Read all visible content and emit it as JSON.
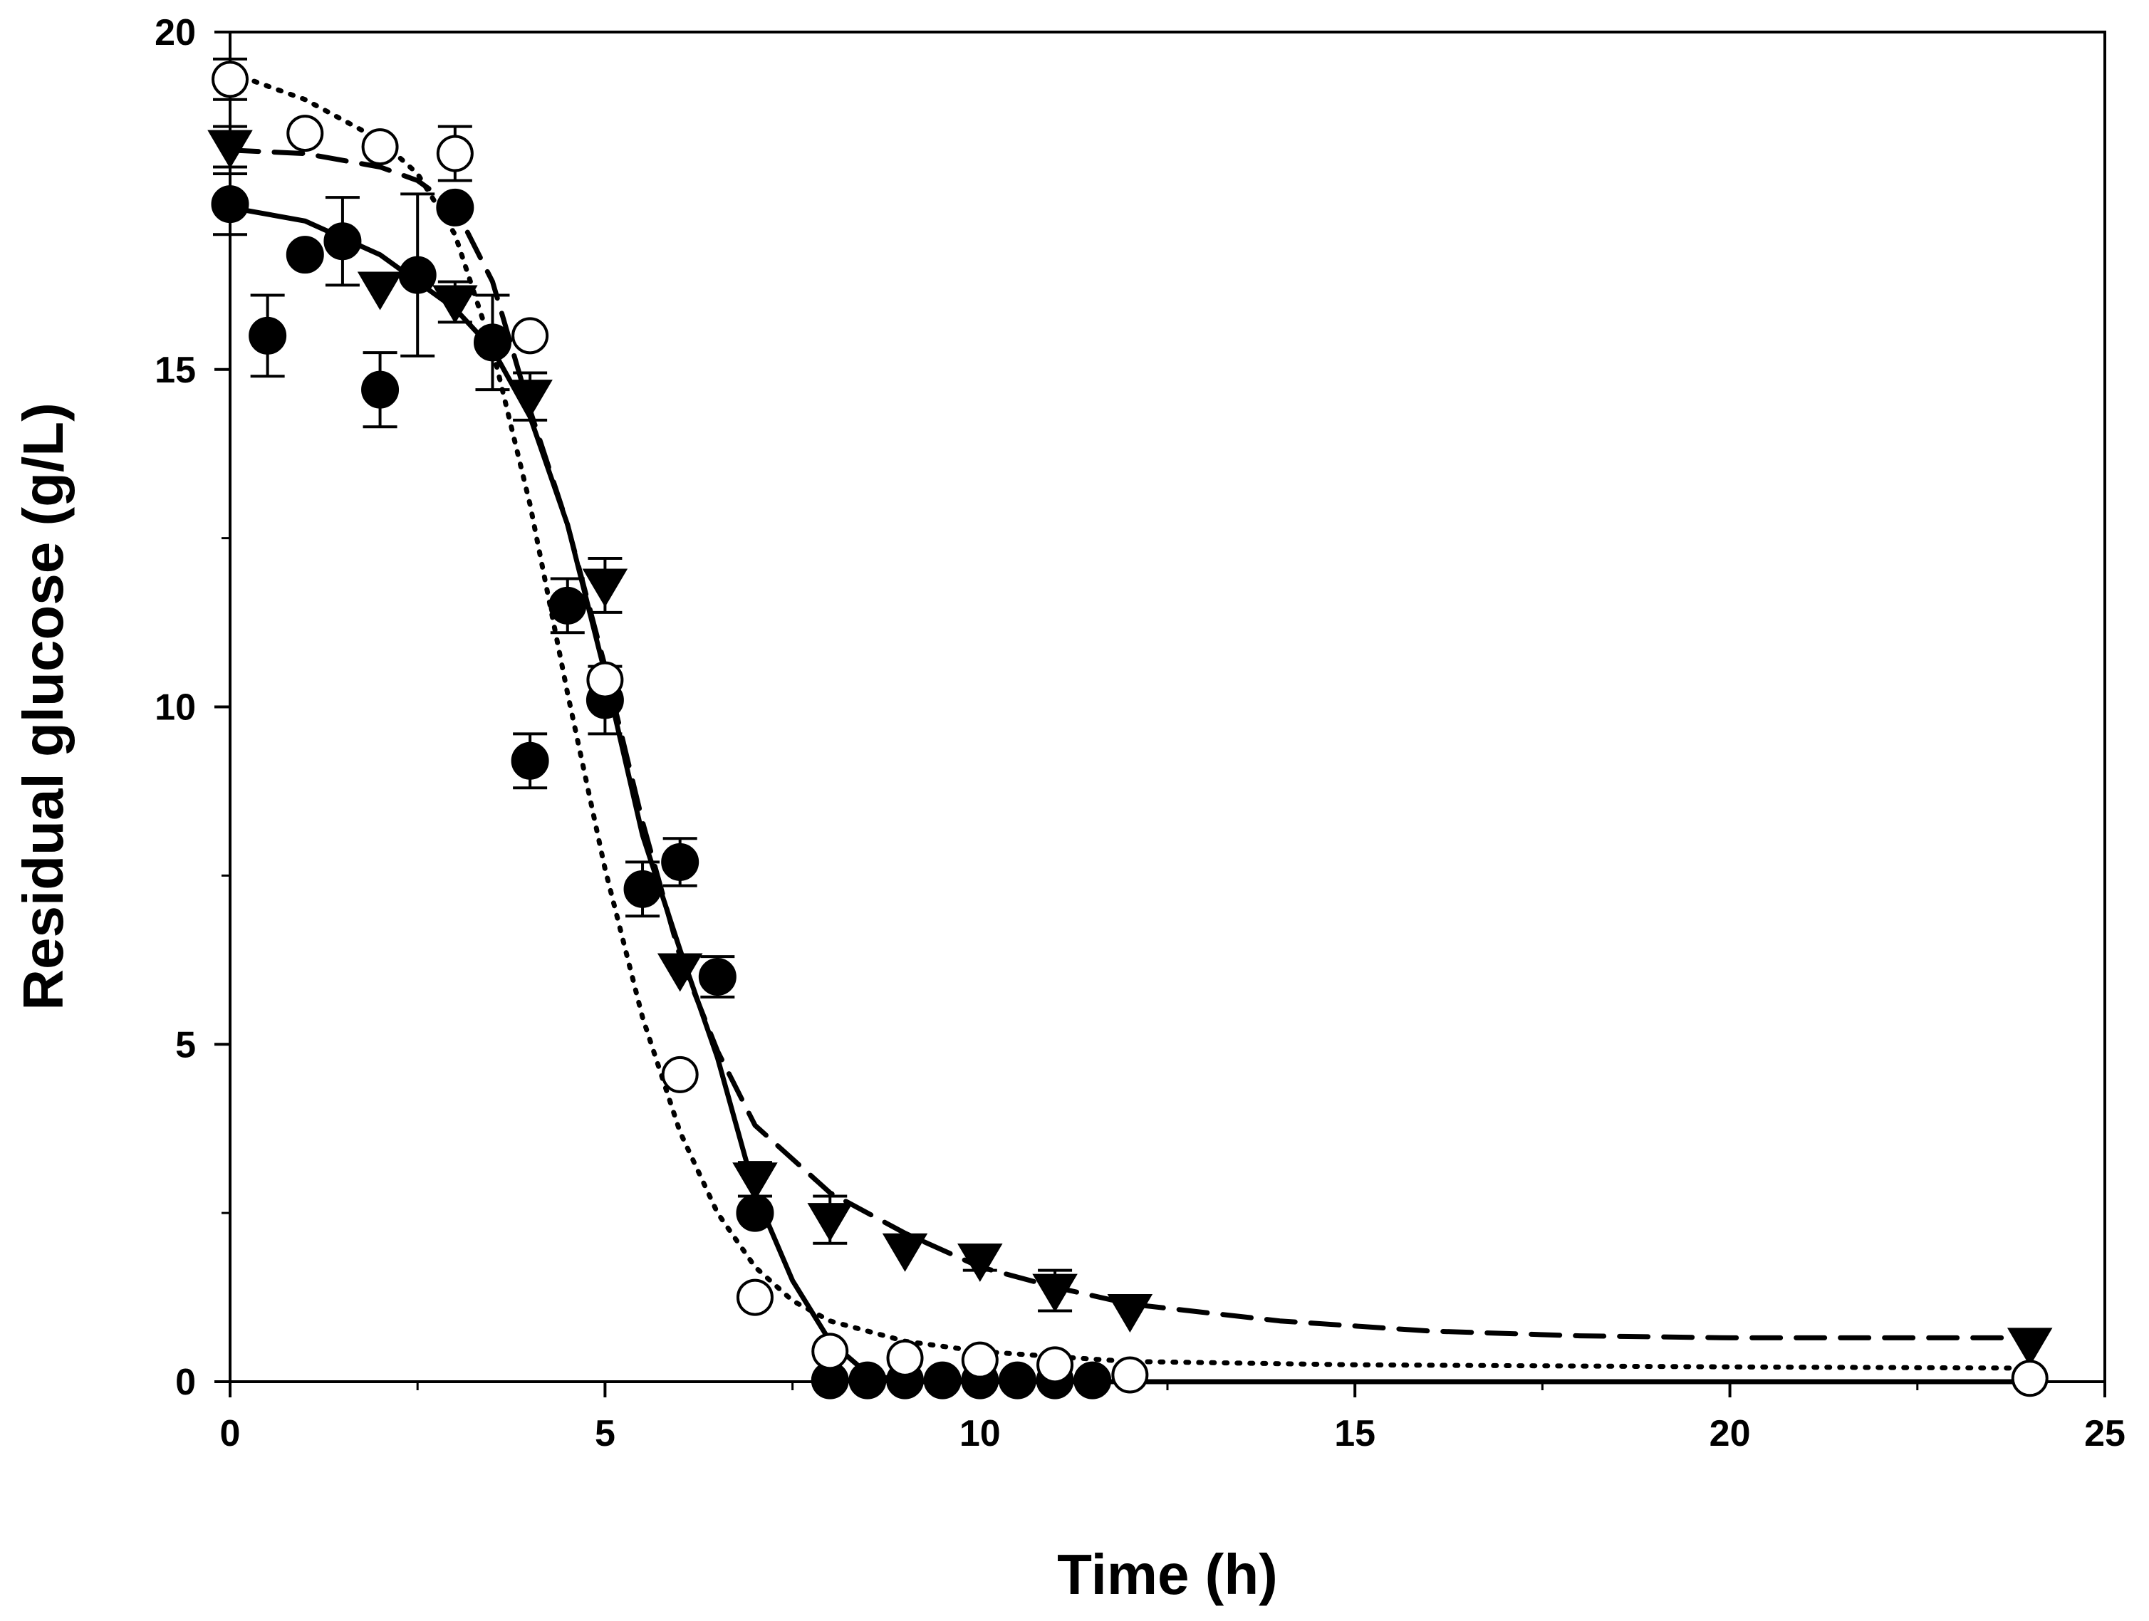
{
  "chart_data": {
    "type": "scatter",
    "title": "",
    "xlabel": "Time (h)",
    "ylabel": "Residual glucose (g/L)",
    "xlim": [
      0,
      25
    ],
    "ylim": [
      0,
      20
    ],
    "xticks": [
      0,
      5,
      10,
      15,
      20,
      25
    ],
    "yticks": [
      0,
      5,
      10,
      15,
      20
    ],
    "xtick_labels": [
      "0",
      "5",
      "10",
      "15",
      "20",
      "25"
    ],
    "ytick_labels": [
      "0",
      "5",
      "10",
      "15",
      "20"
    ],
    "grid": false,
    "legend": "none",
    "series": [
      {
        "name": "filled circles",
        "marker": "circle-filled",
        "line": "solid",
        "points": [
          {
            "x": 0,
            "y": 17.45,
            "err": 0.45
          },
          {
            "x": 0.5,
            "y": 15.5,
            "err": 0.6
          },
          {
            "x": 1,
            "y": 16.7,
            "err": 0.0
          },
          {
            "x": 1.5,
            "y": 16.9,
            "err": 0.65
          },
          {
            "x": 2,
            "y": 14.7,
            "err": 0.55
          },
          {
            "x": 2.5,
            "y": 16.4,
            "err": 1.2
          },
          {
            "x": 3,
            "y": 17.4,
            "err": 0.0
          },
          {
            "x": 3.5,
            "y": 15.4,
            "err": 0.7
          },
          {
            "x": 4,
            "y": 9.2,
            "err": 0.4
          },
          {
            "x": 4.5,
            "y": 11.5,
            "err": 0.4
          },
          {
            "x": 5,
            "y": 10.1,
            "err": 0.5
          },
          {
            "x": 5.5,
            "y": 7.3,
            "err": 0.4
          },
          {
            "x": 6,
            "y": 7.7,
            "err": 0.35
          },
          {
            "x": 6.5,
            "y": 6.0,
            "err": 0.3
          },
          {
            "x": 7,
            "y": 2.5,
            "err": 0.0
          },
          {
            "x": 8,
            "y": 0.02,
            "err": 0.0
          },
          {
            "x": 8.5,
            "y": 0.02,
            "err": 0.0
          },
          {
            "x": 9,
            "y": 0.02,
            "err": 0.0
          },
          {
            "x": 9.5,
            "y": 0.02,
            "err": 0.0
          },
          {
            "x": 10,
            "y": 0.02,
            "err": 0.0
          },
          {
            "x": 10.5,
            "y": 0.02,
            "err": 0.0
          },
          {
            "x": 11,
            "y": 0.02,
            "err": 0.0
          },
          {
            "x": 11.5,
            "y": 0.02,
            "err": 0.0
          }
        ],
        "fit": [
          [
            0,
            17.4
          ],
          [
            1,
            17.2
          ],
          [
            2,
            16.7
          ],
          [
            3,
            15.9
          ],
          [
            3.5,
            15.3
          ],
          [
            4,
            14.3
          ],
          [
            4.5,
            12.7
          ],
          [
            5,
            10.5
          ],
          [
            5.5,
            8.1
          ],
          [
            6,
            6.4
          ],
          [
            6.5,
            4.8
          ],
          [
            7,
            2.8
          ],
          [
            7.5,
            1.5
          ],
          [
            8,
            0.6
          ],
          [
            8.5,
            0.12
          ],
          [
            9,
            0.0
          ],
          [
            12,
            0.0
          ],
          [
            24,
            0.0
          ]
        ]
      },
      {
        "name": "filled triangles",
        "marker": "triangle-down-filled",
        "line": "dashed",
        "points": [
          {
            "x": 0,
            "y": 18.3,
            "err": 0.3
          },
          {
            "x": 2,
            "y": 16.2,
            "err": 0.0
          },
          {
            "x": 3,
            "y": 16.0,
            "err": 0.3
          },
          {
            "x": 4,
            "y": 14.6,
            "err": 0.35
          },
          {
            "x": 5,
            "y": 11.8,
            "err": 0.4
          },
          {
            "x": 6,
            "y": 6.1,
            "err": 0.0
          },
          {
            "x": 7,
            "y": 3.0,
            "err": 0.25
          },
          {
            "x": 8,
            "y": 2.4,
            "err": 0.35
          },
          {
            "x": 9,
            "y": 1.95,
            "err": 0.0
          },
          {
            "x": 10,
            "y": 1.8,
            "err": 0.15
          },
          {
            "x": 11,
            "y": 1.35,
            "err": 0.3
          },
          {
            "x": 12,
            "y": 1.05,
            "err": 0.0
          },
          {
            "x": 24,
            "y": 0.55,
            "err": 0.0
          }
        ],
        "fit": [
          [
            0,
            18.25
          ],
          [
            1,
            18.2
          ],
          [
            2,
            18.0
          ],
          [
            2.5,
            17.8
          ],
          [
            3,
            17.4
          ],
          [
            3.5,
            16.3
          ],
          [
            4,
            14.4
          ],
          [
            4.5,
            12.7
          ],
          [
            5,
            10.6
          ],
          [
            5.5,
            8.3
          ],
          [
            6,
            6.3
          ],
          [
            6.5,
            4.9
          ],
          [
            7,
            3.8
          ],
          [
            8,
            2.8
          ],
          [
            9,
            2.2
          ],
          [
            10,
            1.7
          ],
          [
            11,
            1.4
          ],
          [
            12,
            1.15
          ],
          [
            14,
            0.9
          ],
          [
            16,
            0.75
          ],
          [
            18,
            0.68
          ],
          [
            20,
            0.65
          ],
          [
            24,
            0.65
          ]
        ]
      },
      {
        "name": "open circles",
        "marker": "circle-open",
        "line": "dotted",
        "points": [
          {
            "x": 0,
            "y": 19.3,
            "err": 0.3
          },
          {
            "x": 1,
            "y": 18.5,
            "err": 0.0
          },
          {
            "x": 2,
            "y": 18.3,
            "err": 0.0
          },
          {
            "x": 3,
            "y": 18.2,
            "err": 0.4
          },
          {
            "x": 4,
            "y": 15.5,
            "err": 0.0
          },
          {
            "x": 5,
            "y": 10.4,
            "err": 0.0
          },
          {
            "x": 6,
            "y": 4.55,
            "err": 0.0
          },
          {
            "x": 7,
            "y": 1.25,
            "err": 0.0
          },
          {
            "x": 8,
            "y": 0.45,
            "err": 0.0
          },
          {
            "x": 9,
            "y": 0.35,
            "err": 0.0
          },
          {
            "x": 10,
            "y": 0.32,
            "err": 0.0
          },
          {
            "x": 11,
            "y": 0.25,
            "err": 0.0
          },
          {
            "x": 12,
            "y": 0.1,
            "err": 0.0
          },
          {
            "x": 24,
            "y": 0.05,
            "err": 0.0
          }
        ],
        "fit": [
          [
            0,
            19.4
          ],
          [
            1,
            19.0
          ],
          [
            2,
            18.4
          ],
          [
            2.5,
            17.9
          ],
          [
            3,
            17.0
          ],
          [
            3.5,
            15.3
          ],
          [
            4,
            13.0
          ],
          [
            4.5,
            10.2
          ],
          [
            5,
            7.6
          ],
          [
            5.5,
            5.4
          ],
          [
            6,
            3.7
          ],
          [
            6.5,
            2.5
          ],
          [
            7,
            1.7
          ],
          [
            7.5,
            1.2
          ],
          [
            8,
            0.9
          ],
          [
            9,
            0.6
          ],
          [
            10,
            0.45
          ],
          [
            11,
            0.37
          ],
          [
            12,
            0.3
          ],
          [
            15,
            0.25
          ],
          [
            20,
            0.22
          ],
          [
            24,
            0.2
          ]
        ]
      }
    ]
  }
}
